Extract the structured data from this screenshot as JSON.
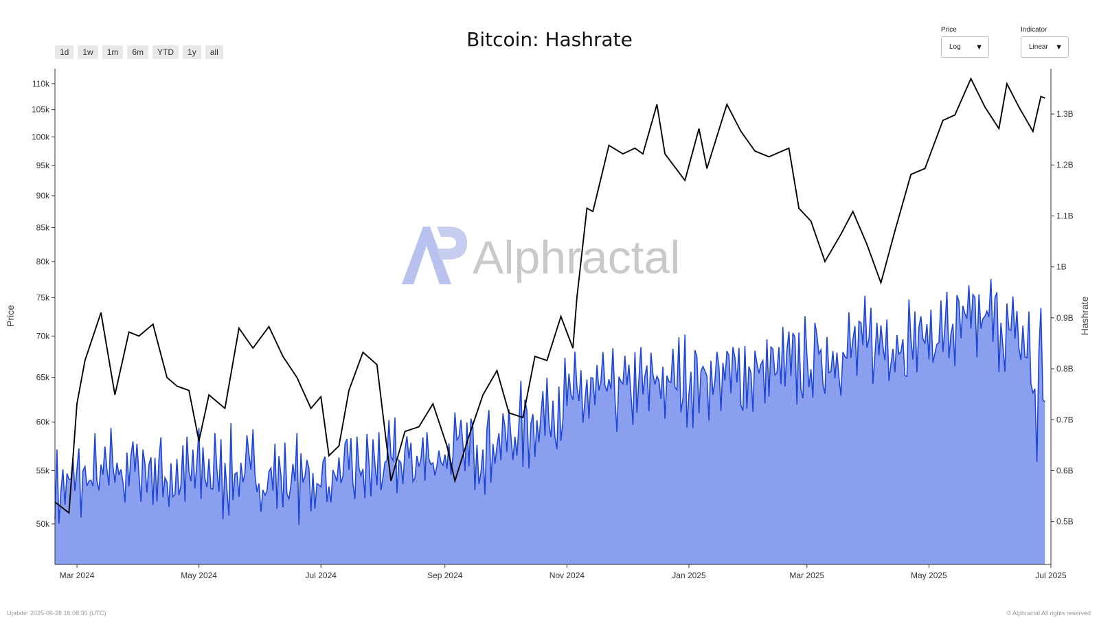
{
  "header": {
    "title": "Bitcoin: Hashrate",
    "range_buttons": [
      "1d",
      "1w",
      "1m",
      "6m",
      "YTD",
      "1y",
      "all"
    ]
  },
  "controls": {
    "price": {
      "label": "Price",
      "value": "Log"
    },
    "indicator": {
      "label": "Indicator",
      "value": "Linear"
    }
  },
  "watermark": "Alphractal",
  "footer": {
    "left": "Update: 2025-06-28 16:08:35 (UTC)",
    "right": "© Alphractal All rights reserved"
  },
  "colors": {
    "price_line": "#000000",
    "hashrate_line": "#1f45d6",
    "hashrate_fill": "#8aa0ef",
    "watermark_logo": "#b9c2ee",
    "watermark_text": "#c9c9c9"
  },
  "chart_data": {
    "type": "line",
    "title": "Bitcoin: Hashrate",
    "x_range": [
      "2024-02-19",
      "2025-07-01"
    ],
    "x_ticks": [
      "Mar 2024",
      "May 2024",
      "Jul 2024",
      "Sep 2024",
      "Nov 2024",
      "Jan 2025",
      "Mar 2025",
      "May 2025",
      "Jul 2025"
    ],
    "y_left": {
      "label": "Price",
      "scale": "log",
      "range": [
        46500,
        113000
      ],
      "ticks": [
        "50k",
        "55k",
        "60k",
        "65k",
        "70k",
        "75k",
        "80k",
        "85k",
        "90k",
        "95k",
        "100k",
        "105k",
        "110k"
      ]
    },
    "y_right": {
      "label": "Hashrate",
      "scale": "linear",
      "range": [
        0.416,
        1.389
      ],
      "ticks": [
        "0.5B",
        "0.6B",
        "0.7B",
        "0.8B",
        "0.9B",
        "1B",
        "1.1B",
        "1.2B",
        "1.3B"
      ]
    },
    "series": [
      {
        "name": "Price",
        "axis": "left",
        "points": [
          [
            "2024-02-19",
            52000
          ],
          [
            "2024-02-26",
            51000
          ],
          [
            "2024-03-01",
            62000
          ],
          [
            "2024-03-05",
            67000
          ],
          [
            "2024-03-13",
            73000
          ],
          [
            "2024-03-20",
            63000
          ],
          [
            "2024-03-27",
            70500
          ],
          [
            "2024-04-01",
            70000
          ],
          [
            "2024-04-08",
            71500
          ],
          [
            "2024-04-15",
            65000
          ],
          [
            "2024-04-20",
            64000
          ],
          [
            "2024-04-26",
            63500
          ],
          [
            "2024-05-01",
            58000
          ],
          [
            "2024-05-06",
            63000
          ],
          [
            "2024-05-14",
            61500
          ],
          [
            "2024-05-21",
            71000
          ],
          [
            "2024-05-28",
            68500
          ],
          [
            "2024-06-05",
            71200
          ],
          [
            "2024-06-12",
            67500
          ],
          [
            "2024-06-19",
            65000
          ],
          [
            "2024-06-26",
            61500
          ],
          [
            "2024-07-01",
            62800
          ],
          [
            "2024-07-05",
            56500
          ],
          [
            "2024-07-10",
            57500
          ],
          [
            "2024-07-15",
            63500
          ],
          [
            "2024-07-22",
            68000
          ],
          [
            "2024-07-29",
            66500
          ],
          [
            "2024-08-05",
            54000
          ],
          [
            "2024-08-12",
            59000
          ],
          [
            "2024-08-19",
            59500
          ],
          [
            "2024-08-26",
            62000
          ],
          [
            "2024-09-02",
            57500
          ],
          [
            "2024-09-06",
            54000
          ],
          [
            "2024-09-13",
            58500
          ],
          [
            "2024-09-20",
            63000
          ],
          [
            "2024-09-27",
            65800
          ],
          [
            "2024-10-03",
            61000
          ],
          [
            "2024-10-10",
            60500
          ],
          [
            "2024-10-16",
            67500
          ],
          [
            "2024-10-22",
            67000
          ],
          [
            "2024-10-29",
            72500
          ],
          [
            "2024-11-04",
            68500
          ],
          [
            "2024-11-06",
            75000
          ],
          [
            "2024-11-11",
            88000
          ],
          [
            "2024-11-14",
            87500
          ],
          [
            "2024-11-22",
            98500
          ],
          [
            "2024-11-29",
            97000
          ],
          [
            "2024-12-05",
            98000
          ],
          [
            "2024-12-09",
            97000
          ],
          [
            "2024-12-16",
            106000
          ],
          [
            "2024-12-20",
            97000
          ],
          [
            "2024-12-30",
            92500
          ],
          [
            "2025-01-06",
            101500
          ],
          [
            "2025-01-10",
            94500
          ],
          [
            "2025-01-20",
            106000
          ],
          [
            "2025-01-27",
            101000
          ],
          [
            "2025-02-03",
            97500
          ],
          [
            "2025-02-10",
            96500
          ],
          [
            "2025-02-20",
            98000
          ],
          [
            "2025-02-25",
            88000
          ],
          [
            "2025-03-03",
            86000
          ],
          [
            "2025-03-10",
            80000
          ],
          [
            "2025-03-18",
            84000
          ],
          [
            "2025-03-24",
            87500
          ],
          [
            "2025-03-31",
            82500
          ],
          [
            "2025-04-07",
            77000
          ],
          [
            "2025-04-14",
            84500
          ],
          [
            "2025-04-22",
            93500
          ],
          [
            "2025-04-29",
            94500
          ],
          [
            "2025-05-08",
            103000
          ],
          [
            "2025-05-14",
            104000
          ],
          [
            "2025-05-22",
            111000
          ],
          [
            "2025-05-29",
            105500
          ],
          [
            "2025-06-05",
            101500
          ],
          [
            "2025-06-09",
            110000
          ],
          [
            "2025-06-15",
            105500
          ],
          [
            "2025-06-22",
            101000
          ],
          [
            "2025-06-26",
            107500
          ],
          [
            "2025-06-28",
            107200
          ]
        ]
      },
      {
        "name": "Hashrate",
        "axis": "right",
        "points": [
          [
            "2024-02-19",
            0.56
          ],
          [
            "2024-03-01",
            0.58
          ],
          [
            "2024-03-15",
            0.59
          ],
          [
            "2024-04-01",
            0.61
          ],
          [
            "2024-04-20",
            0.58
          ],
          [
            "2024-05-01",
            0.6
          ],
          [
            "2024-06-01",
            0.59
          ],
          [
            "2024-07-01",
            0.58
          ],
          [
            "2024-08-01",
            0.61
          ],
          [
            "2024-09-01",
            0.63
          ],
          [
            "2024-10-01",
            0.66
          ],
          [
            "2024-11-01",
            0.74
          ],
          [
            "2024-12-01",
            0.76
          ],
          [
            "2025-01-01",
            0.78
          ],
          [
            "2025-02-01",
            0.79
          ],
          [
            "2025-03-01",
            0.81
          ],
          [
            "2025-04-01",
            0.85
          ],
          [
            "2025-05-01",
            0.86
          ],
          [
            "2025-06-01",
            0.9
          ],
          [
            "2025-06-20",
            0.84
          ],
          [
            "2025-06-24",
            0.69
          ],
          [
            "2025-06-26",
            0.88
          ],
          [
            "2025-06-28",
            0.72
          ]
        ]
      }
    ],
    "grid": false,
    "legend": "none"
  }
}
